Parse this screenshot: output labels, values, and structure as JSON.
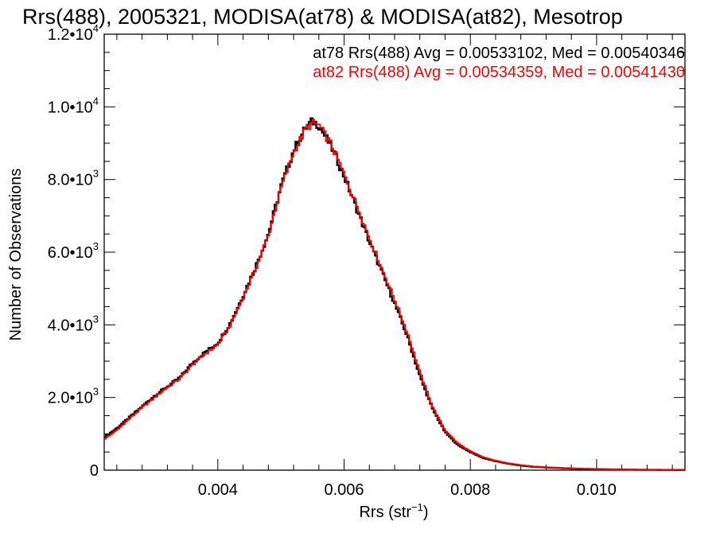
{
  "chart_data": {
    "type": "line",
    "style": "step-histogram",
    "title": "Rrs(488), 2005321, MODISA(at78) & MODISA(at82), Mesotrop",
    "xlabel_main": "Rrs (str",
    "xlabel_sup": "−1",
    "xlabel_tail": ")",
    "ylabel": "Number of Observations",
    "xlim": [
      0.0022,
      0.0114
    ],
    "ylim": [
      0,
      12000
    ],
    "grid": false,
    "legend_placement": "top-right",
    "x_ticks": [
      {
        "value": 0.004,
        "label": "0.004"
      },
      {
        "value": 0.006,
        "label": "0.006"
      },
      {
        "value": 0.008,
        "label": "0.008"
      },
      {
        "value": 0.01,
        "label": "0.010"
      }
    ],
    "y_ticks": [
      {
        "value": 0,
        "mant": "0",
        "exp": ""
      },
      {
        "value": 2000,
        "mant": "2.0•10",
        "exp": "3"
      },
      {
        "value": 4000,
        "mant": "4.0•10",
        "exp": "3"
      },
      {
        "value": 6000,
        "mant": "6.0•10",
        "exp": "3"
      },
      {
        "value": 8000,
        "mant": "8.0•10",
        "exp": "3"
      },
      {
        "value": 10000,
        "mant": "1.0•10",
        "exp": "4"
      },
      {
        "value": 12000,
        "mant": "1.2•10",
        "exp": "4"
      }
    ],
    "x": [
      0.0022,
      0.0024,
      0.0026,
      0.0028,
      0.003,
      0.0032,
      0.0034,
      0.0036,
      0.0038,
      0.004,
      0.0042,
      0.0044,
      0.0046,
      0.0048,
      0.005,
      0.0052,
      0.0054,
      0.0055,
      0.0056,
      0.0058,
      0.006,
      0.0062,
      0.0064,
      0.0066,
      0.0068,
      0.007,
      0.0072,
      0.0074,
      0.0076,
      0.0078,
      0.008,
      0.0082,
      0.0084,
      0.0086,
      0.0088,
      0.009,
      0.0092,
      0.0094,
      0.0096,
      0.0098,
      0.01,
      0.0102,
      0.0104,
      0.0106,
      0.0108,
      0.011,
      0.0112,
      0.0114
    ],
    "series": [
      {
        "name": "at78 Rrs(488) Avg = 0.00533102, Med = 0.00540346",
        "color": "#000000",
        "values": [
          900,
          1150,
          1450,
          1750,
          2050,
          2300,
          2550,
          2950,
          3250,
          3500,
          4050,
          4800,
          5600,
          6500,
          7800,
          8800,
          9450,
          9600,
          9500,
          8900,
          8100,
          7200,
          6300,
          5450,
          4600,
          3700,
          2600,
          1700,
          1050,
          700,
          500,
          340,
          250,
          180,
          130,
          95,
          75,
          60,
          45,
          35,
          28,
          22,
          18,
          14,
          10,
          8,
          6,
          5
        ]
      },
      {
        "name": "at82 Rrs(488) Avg = 0.00534359, Med = 0.00541430",
        "color": "#ff0000",
        "values": [
          850,
          1100,
          1420,
          1720,
          2000,
          2280,
          2520,
          2900,
          3200,
          3450,
          4000,
          4750,
          5550,
          6450,
          7750,
          8750,
          9400,
          9550,
          9500,
          8950,
          8150,
          7300,
          6400,
          5550,
          4700,
          3800,
          2700,
          1750,
          1100,
          740,
          520,
          360,
          260,
          190,
          140,
          100,
          78,
          62,
          47,
          36,
          29,
          23,
          18,
          14,
          11,
          8,
          6,
          5
        ]
      }
    ]
  }
}
